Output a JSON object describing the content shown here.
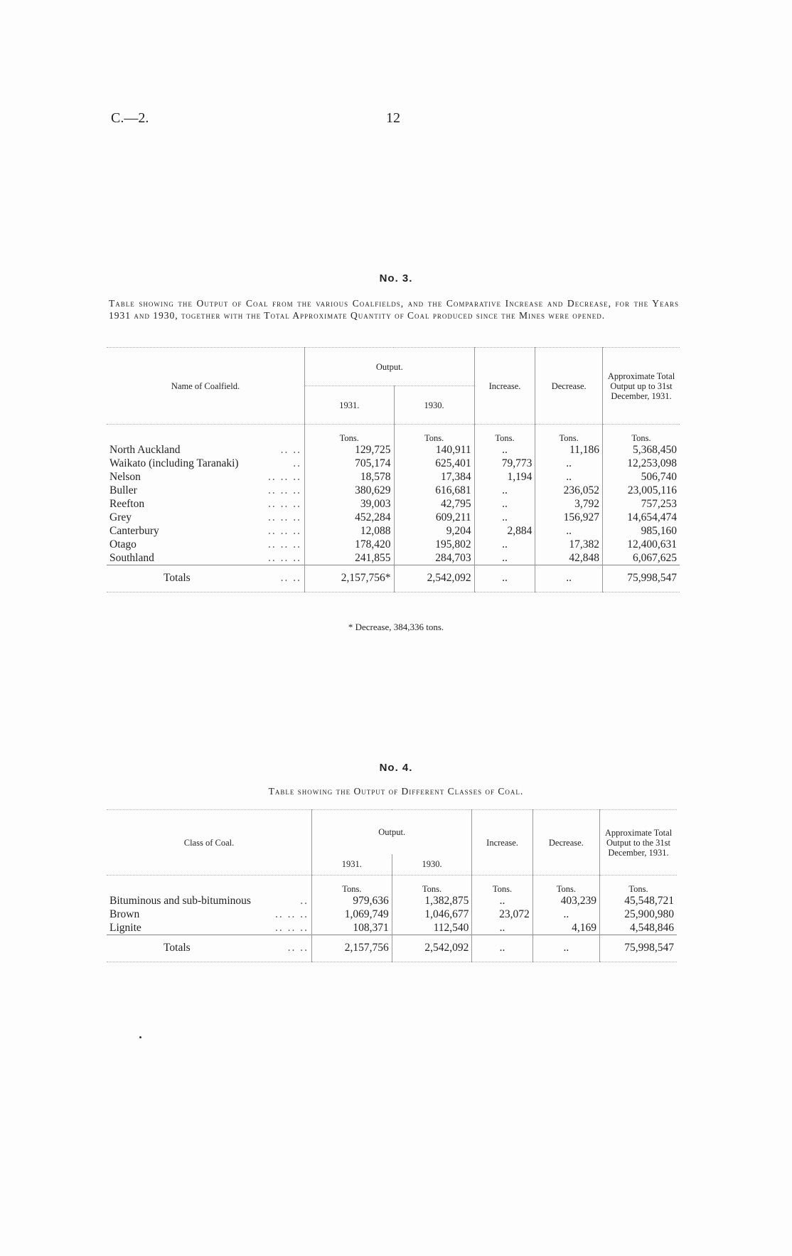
{
  "header": {
    "doc_ref": "C.—2.",
    "page_number": "12"
  },
  "table3": {
    "number": "No. 3.",
    "caption": "Table showing the Output of Coal from the various Coalfields, and the Comparative Increase and Decrease, for the Years 1931 and 1930, together with the Total Approximate Quantity of Coal produced since the Mines were opened.",
    "columns": {
      "name": "Name of Coalfield.",
      "output": "Output.",
      "y1931": "1931.",
      "y1930": "1930.",
      "increase": "Increase.",
      "decrease": "Decrease.",
      "total": "Approximate Total Output up to 31st December, 1931."
    },
    "unit": "Tons.",
    "rows": [
      {
        "name": "North Auckland",
        "dots": ".. ..",
        "y1931": "129,725",
        "y1930": "140,911",
        "increase": "..",
        "decrease": "11,186",
        "total": "5,368,450"
      },
      {
        "name": "Waikato (including Taranaki)",
        "dots": "..",
        "y1931": "705,174",
        "y1930": "625,401",
        "increase": "79,773",
        "decrease": "..",
        "total": "12,253,098"
      },
      {
        "name": "Nelson",
        "dots": ".. .. ..",
        "y1931": "18,578",
        "y1930": "17,384",
        "increase": "1,194",
        "decrease": "..",
        "total": "506,740"
      },
      {
        "name": "Buller",
        "dots": ".. .. ..",
        "y1931": "380,629",
        "y1930": "616,681",
        "increase": "..",
        "decrease": "236,052",
        "total": "23,005,116"
      },
      {
        "name": "Reefton",
        "dots": ".. .. ..",
        "y1931": "39,003",
        "y1930": "42,795",
        "increase": "..",
        "decrease": "3,792",
        "total": "757,253"
      },
      {
        "name": "Grey",
        "dots": ".. .. ..",
        "y1931": "452,284",
        "y1930": "609,211",
        "increase": "..",
        "decrease": "156,927",
        "total": "14,654,474"
      },
      {
        "name": "Canterbury",
        "dots": ".. .. ..",
        "y1931": "12,088",
        "y1930": "9,204",
        "increase": "2,884",
        "decrease": "..",
        "total": "985,160"
      },
      {
        "name": "Otago",
        "dots": ".. .. ..",
        "y1931": "178,420",
        "y1930": "195,802",
        "increase": "..",
        "decrease": "17,382",
        "total": "12,400,631"
      },
      {
        "name": "Southland",
        "dots": ".. .. ..",
        "y1931": "241,855",
        "y1930": "284,703",
        "increase": "..",
        "decrease": "42,848",
        "total": "6,067,625"
      }
    ],
    "totals": {
      "name": "Totals",
      "dots": ".. ..",
      "y1931": "2,157,756*",
      "y1930": "2,542,092",
      "increase": "..",
      "decrease": "..",
      "total": "75,998,547"
    },
    "footnote": "* Decrease, 384,336 tons."
  },
  "table4": {
    "number": "No. 4.",
    "caption": "Table showing the Output of Different Classes of Coal.",
    "columns": {
      "name": "Class of Coal.",
      "output": "Output.",
      "y1931": "1931.",
      "y1930": "1930.",
      "increase": "Increase.",
      "decrease": "Decrease.",
      "total": "Approximate Total Output to the 31st December, 1931."
    },
    "unit": "Tons.",
    "rows": [
      {
        "name": "Bituminous and sub-bituminous",
        "dots": "..",
        "y1931": "979,636",
        "y1930": "1,382,875",
        "increase": "..",
        "decrease": "403,239",
        "total": "45,548,721"
      },
      {
        "name": "Brown",
        "dots": ".. .. ..",
        "y1931": "1,069,749",
        "y1930": "1,046,677",
        "increase": "23,072",
        "decrease": "..",
        "total": "25,900,980"
      },
      {
        "name": "Lignite",
        "dots": ".. .. ..",
        "y1931": "108,371",
        "y1930": "112,540",
        "increase": "..",
        "decrease": "4,169",
        "total": "4,548,846"
      }
    ],
    "totals": {
      "name": "Totals",
      "dots": ".. ..",
      "y1931": "2,157,756",
      "y1930": "2,542,092",
      "increase": "..",
      "decrease": "..",
      "total": "75,998,547"
    }
  }
}
